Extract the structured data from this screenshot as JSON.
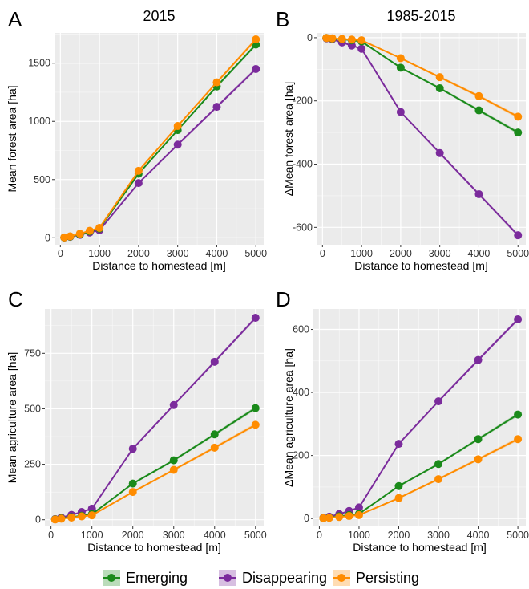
{
  "colors": {
    "Emerging": "#1a8a1a",
    "Disappearing": "#7b2b9c",
    "Persisting": "#ff8c00",
    "panel_bg": "#ebebeb",
    "grid": "#ffffff"
  },
  "legend": {
    "position": "bottom",
    "items": [
      "Emerging",
      "Disappearing",
      "Persisting"
    ]
  },
  "chart_data": [
    {
      "type": "line",
      "panel": "A",
      "title": "2015",
      "xlabel": "Distance to homestead [m]",
      "ylabel": "Mean forest area [ha]",
      "xlim": [
        -150,
        5200
      ],
      "ylim": [
        -60,
        1760
      ],
      "xticks": [
        0,
        1000,
        2000,
        3000,
        4000,
        5000
      ],
      "yticks": [
        0,
        500,
        1000,
        1500
      ],
      "ytick_labels": [
        "0",
        "500",
        "1000",
        "1500"
      ],
      "grid": true,
      "x": [
        100,
        250,
        500,
        750,
        1000,
        2000,
        3000,
        4000,
        5000
      ],
      "series": [
        {
          "name": "Emerging",
          "values": [
            2,
            10,
            30,
            55,
            80,
            550,
            925,
            1300,
            1660
          ]
        },
        {
          "name": "Disappearing",
          "values": [
            2,
            8,
            25,
            45,
            65,
            470,
            800,
            1125,
            1450
          ]
        },
        {
          "name": "Persisting",
          "values": [
            3,
            12,
            35,
            60,
            85,
            575,
            960,
            1335,
            1705
          ]
        }
      ]
    },
    {
      "type": "line",
      "panel": "B",
      "title": "1985-2015",
      "xlabel": "Distance to homestead [m]",
      "ylabel": "ΔMean forest area [ha]",
      "xlim": [
        -150,
        5200
      ],
      "ylim": [
        -655,
        15
      ],
      "xticks": [
        0,
        1000,
        2000,
        3000,
        4000,
        5000
      ],
      "yticks": [
        0,
        -200,
        -400,
        -600
      ],
      "ytick_labels": [
        "0",
        "-200",
        "-400",
        "-600"
      ],
      "grid": true,
      "x": [
        100,
        250,
        500,
        750,
        1000,
        2000,
        3000,
        4000,
        5000
      ],
      "series": [
        {
          "name": "Emerging",
          "values": [
            -1,
            -3,
            -5,
            -8,
            -12,
            -95,
            -160,
            -230,
            -300
          ]
        },
        {
          "name": "Disappearing",
          "values": [
            -2,
            -5,
            -15,
            -25,
            -35,
            -235,
            -365,
            -495,
            -625
          ]
        },
        {
          "name": "Persisting",
          "values": [
            -1,
            -2,
            -4,
            -6,
            -8,
            -65,
            -125,
            -185,
            -250
          ]
        }
      ]
    },
    {
      "type": "line",
      "panel": "C",
      "xlabel": "Distance to homestead [m]",
      "ylabel": "Mean agriculture area [ha]",
      "xlim": [
        -150,
        5200
      ],
      "ylim": [
        -30,
        950
      ],
      "xticks": [
        0,
        1000,
        2000,
        3000,
        4000,
        5000
      ],
      "yticks": [
        0,
        250,
        500,
        750
      ],
      "ytick_labels": [
        "0",
        "250",
        "500",
        "750"
      ],
      "grid": true,
      "x": [
        100,
        250,
        500,
        750,
        1000,
        2000,
        3000,
        4000,
        5000
      ],
      "series": [
        {
          "name": "Emerging",
          "values": [
            2,
            6,
            12,
            18,
            25,
            163,
            268,
            385,
            503
          ]
        },
        {
          "name": "Disappearing",
          "values": [
            3,
            10,
            22,
            35,
            50,
            320,
            517,
            712,
            910
          ]
        },
        {
          "name": "Persisting",
          "values": [
            1,
            5,
            10,
            15,
            20,
            125,
            225,
            325,
            428
          ]
        }
      ]
    },
    {
      "type": "line",
      "panel": "D",
      "title": "",
      "xlabel": "Distance to homestead [m]",
      "ylabel": "ΔMean agriculture area [ha]",
      "xlim": [
        -150,
        5200
      ],
      "ylim": [
        -25,
        665
      ],
      "xticks": [
        0,
        1000,
        2000,
        3000,
        4000,
        5000
      ],
      "yticks": [
        0,
        200,
        400,
        600
      ],
      "ytick_labels": [
        "0",
        "200",
        "400",
        "600"
      ],
      "grid": true,
      "x": [
        100,
        250,
        500,
        750,
        1000,
        2000,
        3000,
        4000,
        5000
      ],
      "series": [
        {
          "name": "Emerging",
          "values": [
            1,
            3,
            7,
            11,
            15,
            103,
            173,
            252,
            330
          ]
        },
        {
          "name": "Disappearing",
          "values": [
            2,
            6,
            14,
            24,
            35,
            237,
            372,
            503,
            632
          ]
        },
        {
          "name": "Persisting",
          "values": [
            1,
            2,
            5,
            8,
            11,
            65,
            125,
            188,
            252
          ]
        }
      ]
    }
  ]
}
